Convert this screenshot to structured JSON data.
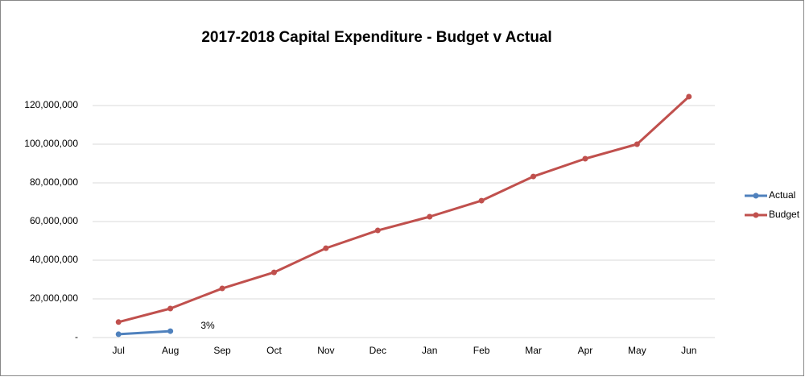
{
  "chart_data": {
    "type": "line",
    "title": "2017-2018 Capital Expenditure - Budget v Actual",
    "categories": [
      "Jul",
      "Aug",
      "Sep",
      "Oct",
      "Nov",
      "Dec",
      "Jan",
      "Feb",
      "Mar",
      "Apr",
      "May",
      "Jun"
    ],
    "series": [
      {
        "name": "Actual",
        "color": "#4f81bd",
        "values": [
          1700000,
          3300000,
          null,
          null,
          null,
          null,
          null,
          null,
          null,
          null,
          null,
          null
        ]
      },
      {
        "name": "Budget",
        "color": "#c0504d",
        "values": [
          8000000,
          15000000,
          25400000,
          33700000,
          46200000,
          55400000,
          62500000,
          70800000,
          83300000,
          92500000,
          100000000,
          124600000
        ]
      }
    ],
    "annotations": [
      "3%"
    ],
    "ylim": [
      0,
      130000000
    ],
    "yticks": [
      {
        "value": 0,
        "label": "-"
      },
      {
        "value": 20000000,
        "label": "20,000,000"
      },
      {
        "value": 40000000,
        "label": "40,000,000"
      },
      {
        "value": 60000000,
        "label": "60,000,000"
      },
      {
        "value": 80000000,
        "label": "80,000,000"
      },
      {
        "value": 100000000,
        "label": "100,000,000"
      },
      {
        "value": 120000000,
        "label": "120,000,000"
      }
    ],
    "grid": true,
    "legend": "right"
  }
}
